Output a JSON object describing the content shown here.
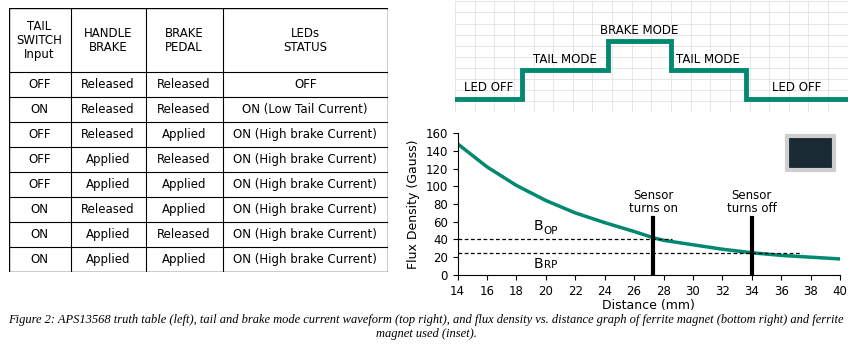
{
  "table": {
    "header": [
      "TAIL\nSWITCH\nInput",
      "HANDLE\nBRAKE",
      "BRAKE\nPEDAL",
      "LEDs\nSTATUS"
    ],
    "rows": [
      [
        "OFF",
        "Released",
        "Released",
        "OFF"
      ],
      [
        "ON",
        "Released",
        "Released",
        "ON (Low Tail Current)"
      ],
      [
        "OFF",
        "Released",
        "Applied",
        "ON (High brake Current)"
      ],
      [
        "OFF",
        "Applied",
        "Released",
        "ON (High brake Current)"
      ],
      [
        "OFF",
        "Applied",
        "Applied",
        "ON (High brake Current)"
      ],
      [
        "ON",
        "Released",
        "Applied",
        "ON (High brake Current)"
      ],
      [
        "ON",
        "Applied",
        "Released",
        "ON (High brake Current)"
      ],
      [
        "ON",
        "Applied",
        "Applied",
        "ON (High brake Current)"
      ]
    ]
  },
  "waveform": {
    "labels": [
      "LED OFF",
      "TAIL MODE",
      "BRAKE MODE",
      "TAIL MODE",
      "LED OFF"
    ]
  },
  "chart_data": {
    "type": "line",
    "color": "#00896f",
    "x": [
      14,
      16,
      18,
      20,
      22,
      24,
      26,
      27.3,
      28,
      30,
      32,
      34,
      36,
      38,
      40
    ],
    "values": [
      148,
      122,
      101,
      84,
      70,
      59,
      49,
      42,
      39,
      34,
      29,
      25,
      22,
      20,
      18
    ],
    "xlabel": "Distance (mm)",
    "ylabel": "Flux Density (Gauss)",
    "xlim": [
      14,
      40
    ],
    "xticks": [
      14,
      16,
      18,
      20,
      22,
      24,
      26,
      28,
      30,
      32,
      34,
      36,
      38,
      40
    ],
    "ylim": [
      0,
      160
    ],
    "yticks": [
      0,
      20,
      40,
      60,
      80,
      100,
      120,
      140,
      160
    ],
    "grid": false,
    "thresholds": [
      {
        "name": {
          "main": "B",
          "sub": "OP"
        },
        "value": 41
      },
      {
        "name": {
          "main": "B",
          "sub": "RP"
        },
        "value": 25
      }
    ],
    "annotations": [
      {
        "text": "Sensor\nturns on",
        "x": 27.3
      },
      {
        "text": "Sensor\nturns off",
        "x": 34
      }
    ]
  },
  "caption": "Figure 2: APS13568 truth table (left), tail and brake mode current waveform (top right), and flux density vs. distance graph of ferrite magnet (bottom right) and ferrite magnet used (inset)."
}
